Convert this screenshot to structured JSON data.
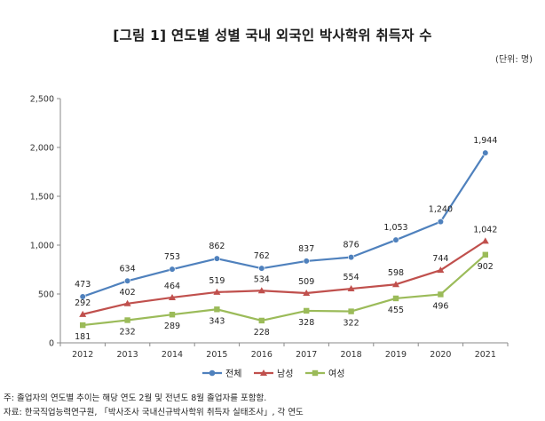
{
  "header": {
    "title": "[그림 1] 연도별 성별 국내 외국인 박사학위 취득자 수",
    "unit": "(단위: 명)"
  },
  "notes": {
    "line1": "주: 졸업자의 연도별 추이는 해당 연도 2월 및 전년도 8월 졸업자를 포함함.",
    "line2": "자료: 한국직업능력연구원, 「박사조사 국내신규박사학위 취득자 실태조사」, 각 연도"
  },
  "chart_data": {
    "type": "line",
    "categories": [
      "2012",
      "2013",
      "2014",
      "2015",
      "2016",
      "2017",
      "2018",
      "2019",
      "2020",
      "2021"
    ],
    "ylim": [
      0,
      2500
    ],
    "yticks": [
      0,
      500,
      1000,
      1500,
      2000,
      2500
    ],
    "ytick_labels": [
      "0",
      "500",
      "1,000",
      "1,500",
      "2,000",
      "2,500"
    ],
    "grid": false,
    "legend_position": "bottom",
    "series": [
      {
        "name": "전체",
        "color": "#4f81bd",
        "values": [
          473,
          634,
          753,
          862,
          762,
          837,
          876,
          1053,
          1240,
          1944
        ],
        "labels": [
          "473",
          "634",
          "753",
          "862",
          "762",
          "837",
          "876",
          "1,053",
          "1,240",
          "1,944"
        ]
      },
      {
        "name": "남성",
        "color": "#c0504d",
        "values": [
          292,
          402,
          464,
          519,
          534,
          509,
          554,
          598,
          744,
          1042
        ],
        "labels": [
          "292",
          "402",
          "464",
          "519",
          "534",
          "509",
          "554",
          "598",
          "744",
          "1,042"
        ]
      },
      {
        "name": "여성",
        "color": "#9bbb59",
        "values": [
          181,
          232,
          289,
          343,
          228,
          328,
          322,
          455,
          496,
          902
        ],
        "labels": [
          "181",
          "232",
          "289",
          "343",
          "228",
          "328",
          "322",
          "455",
          "496",
          "902"
        ]
      }
    ]
  }
}
